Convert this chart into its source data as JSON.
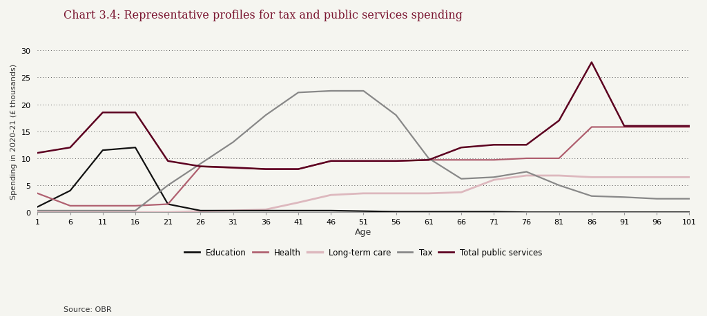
{
  "title": "Chart 3.4: Representative profiles for tax and public services spending",
  "xlabel": "Age",
  "ylabel": "Spending in 2020-21 (£ thousands)",
  "source": "Source: OBR",
  "ylim": [
    0,
    30
  ],
  "yticks": [
    0,
    5,
    10,
    15,
    20,
    25,
    30
  ],
  "ages": [
    1,
    6,
    11,
    16,
    21,
    26,
    31,
    36,
    41,
    46,
    51,
    56,
    61,
    66,
    71,
    76,
    81,
    86,
    91,
    96,
    101
  ],
  "education": [
    1.0,
    4.0,
    11.5,
    12.0,
    1.5,
    0.3,
    0.3,
    0.3,
    0.3,
    0.3,
    0.2,
    0.1,
    0.1,
    0.1,
    0.1,
    0.0,
    0.0,
    0.0,
    0.0,
    0.0,
    0.0
  ],
  "health": [
    3.5,
    1.2,
    1.2,
    1.2,
    1.5,
    8.5,
    8.2,
    8.0,
    8.0,
    9.5,
    9.5,
    9.5,
    9.7,
    9.7,
    9.7,
    10.0,
    10.0,
    15.8,
    15.8,
    15.8,
    15.8
  ],
  "long_term_care": [
    0.0,
    0.0,
    0.0,
    0.0,
    0.0,
    0.2,
    0.3,
    0.5,
    1.8,
    3.2,
    3.5,
    3.5,
    3.5,
    3.7,
    6.0,
    6.8,
    6.8,
    6.5,
    6.5,
    6.5,
    6.5
  ],
  "tax": [
    0.3,
    0.3,
    0.3,
    0.3,
    5.0,
    9.0,
    13.0,
    18.0,
    22.2,
    22.5,
    22.5,
    18.0,
    10.0,
    6.2,
    6.5,
    7.5,
    5.0,
    3.0,
    2.8,
    2.5,
    2.5
  ],
  "total_public_services": [
    11.0,
    12.0,
    18.5,
    18.5,
    9.5,
    8.5,
    8.3,
    8.0,
    8.0,
    9.5,
    9.5,
    9.5,
    9.7,
    12.0,
    12.5,
    12.5,
    17.0,
    27.8,
    16.0,
    16.0,
    16.0
  ],
  "education_color": "#111111",
  "health_color": "#b06070",
  "long_term_care_color": "#ddb8be",
  "tax_color": "#888888",
  "total_public_services_color": "#5c0020",
  "title_color": "#7a1530",
  "background_color": "#f5f5f0",
  "grid_color": "#555555",
  "xtick_labels": [
    "1",
    "6",
    "11",
    "16",
    "21",
    "26",
    "31",
    "36",
    "41",
    "46",
    "51",
    "56",
    "61",
    "66",
    "71",
    "76",
    "81",
    "86",
    "91",
    "96",
    "101"
  ]
}
